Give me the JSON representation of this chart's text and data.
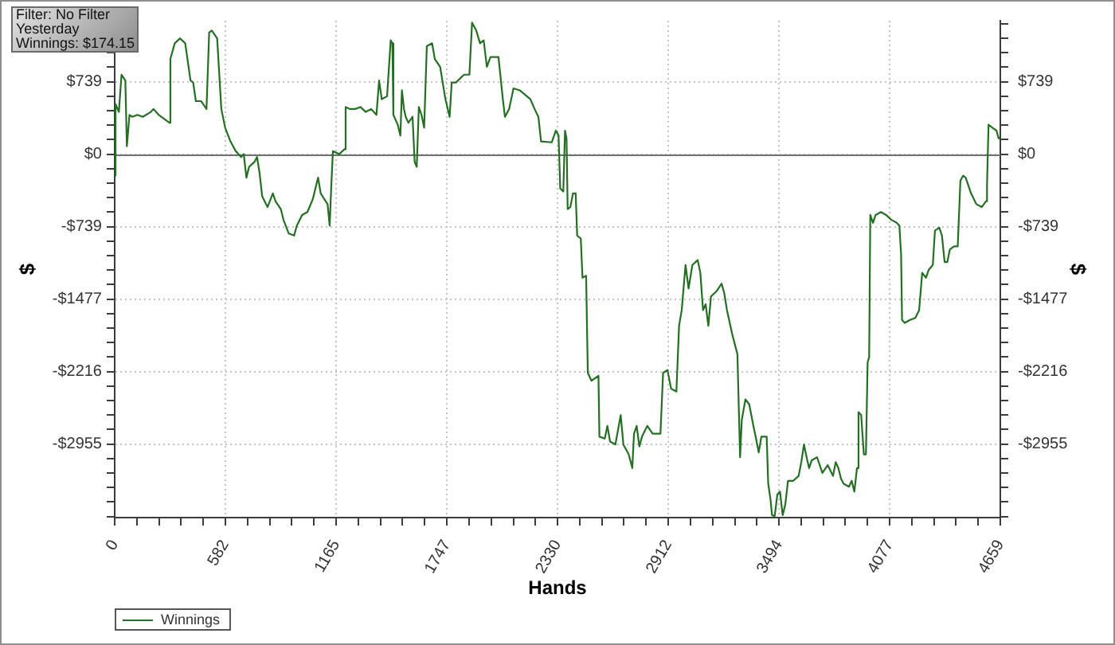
{
  "chart_data": {
    "type": "line",
    "xlabel": "Hands",
    "ylabel": "$",
    "y2label": "$",
    "annotations": [
      "Filter: No Filter",
      "Yesterday",
      "Winnings: $174.15"
    ],
    "x": [
      0,
      3,
      6,
      22,
      36,
      56,
      64,
      78,
      92,
      120,
      148,
      190,
      204,
      232,
      288,
      293,
      316,
      344,
      371,
      399,
      413,
      427,
      455,
      483,
      497,
      511,
      539,
      561,
      581,
      609,
      637,
      665,
      679,
      693,
      707,
      735,
      749,
      762,
      776,
      804,
      832,
      846,
      874,
      888,
      916,
      944,
      958,
      986,
      1014,
      1042,
      1070,
      1084,
      1103,
      1120,
      1131,
      1140,
      1148,
      1181,
      1209,
      1215,
      1237,
      1265,
      1293,
      1321,
      1349,
      1377,
      1391,
      1405,
      1433,
      1452,
      1461,
      1466,
      1489,
      1503,
      1511,
      1522,
      1531,
      1545,
      1567,
      1578,
      1589,
      1600,
      1614,
      1628,
      1642,
      1670,
      1684,
      1712,
      1740,
      1762,
      1773,
      1795,
      1838,
      1866,
      1880,
      1902,
      1922,
      1941,
      1958,
      1977,
      2019,
      2042,
      2053,
      2075,
      2098,
      2131,
      2187,
      2209,
      2229,
      2243,
      2299,
      2321,
      2335,
      2344,
      2360,
      2369,
      2377,
      2383,
      2397,
      2411,
      2425,
      2433,
      2452,
      2461,
      2480,
      2489,
      2508,
      2545,
      2550,
      2578,
      2592,
      2606,
      2634,
      2662,
      2676,
      2704,
      2723,
      2732,
      2746,
      2760,
      2774,
      2802,
      2830,
      2871,
      2885,
      2908,
      2927,
      2955,
      2969,
      2983,
      3003,
      3019,
      3039,
      3067,
      3081,
      3095,
      3109,
      3123,
      3137,
      3165,
      3193,
      3207,
      3221,
      3248,
      3276,
      3290,
      3299,
      3318,
      3338,
      3360,
      3374,
      3388,
      3402,
      3430,
      3438,
      3450,
      3458,
      3472,
      3486,
      3500,
      3514,
      3528,
      3542,
      3570,
      3598,
      3612,
      3626,
      3640,
      3653,
      3667,
      3695,
      3723,
      3751,
      3779,
      3793,
      3807,
      3821,
      3835,
      3863,
      3877,
      3891,
      3905,
      3913,
      3927,
      3941,
      3952,
      3961,
      3969,
      3975,
      3989,
      4003,
      4031,
      4058,
      4086,
      4114,
      4128,
      4137,
      4142,
      4156,
      4184,
      4212,
      4232,
      4248,
      4268,
      4282,
      4304,
      4315,
      4338,
      4352,
      4366,
      4380,
      4394,
      4416,
      4435,
      4449,
      4463,
      4477,
      4505,
      4533,
      4561,
      4584,
      4589,
      4597,
      4617,
      4639,
      4650,
      4659
    ],
    "series": [
      {
        "name": "Winnings",
        "color": "#246f24",
        "values": [
          0,
          -220,
          510,
          430,
          810,
          750,
          80,
          400,
          380,
          400,
          380,
          430,
          460,
          400,
          320,
          970,
          1130,
          1180,
          1130,
          750,
          730,
          540,
          540,
          460,
          1240,
          1260,
          1180,
          460,
          270,
          130,
          30,
          -30,
          0,
          -240,
          -130,
          -80,
          -30,
          -190,
          -430,
          -540,
          -400,
          -480,
          -560,
          -670,
          -810,
          -830,
          -730,
          -620,
          -590,
          -460,
          -240,
          -400,
          -460,
          -510,
          -730,
          -300,
          30,
          0,
          50,
          480,
          460,
          460,
          480,
          430,
          460,
          400,
          750,
          560,
          590,
          1160,
          1130,
          400,
          300,
          190,
          650,
          460,
          380,
          320,
          380,
          -80,
          -130,
          480,
          400,
          270,
          1100,
          1130,
          970,
          890,
          560,
          380,
          730,
          730,
          810,
          810,
          1340,
          1260,
          1130,
          1160,
          890,
          990,
          990,
          560,
          380,
          460,
          670,
          650,
          560,
          460,
          380,
          130,
          120,
          240,
          190,
          -350,
          -380,
          240,
          160,
          -560,
          -540,
          -400,
          -400,
          -830,
          -860,
          -1260,
          -1240,
          -2230,
          -2310,
          -2260,
          -2880,
          -2900,
          -2770,
          -2930,
          -2960,
          -2660,
          -2960,
          -3060,
          -3200,
          -2850,
          -2770,
          -2980,
          -2880,
          -2770,
          -2850,
          -2850,
          -2230,
          -2200,
          -2390,
          -2420,
          -1750,
          -1590,
          -1130,
          -1370,
          -1130,
          -1080,
          -1210,
          -1590,
          -1530,
          -1750,
          -1450,
          -1400,
          -1320,
          -1420,
          -1590,
          -1830,
          -2040,
          -3090,
          -2710,
          -2500,
          -2550,
          -2770,
          -2900,
          -3040,
          -2880,
          -2880,
          -3360,
          -3520,
          -3680,
          -3690,
          -3470,
          -3440,
          -3680,
          -3570,
          -3330,
          -3330,
          -3280,
          -3140,
          -2960,
          -3090,
          -3200,
          -3120,
          -3090,
          -3250,
          -3170,
          -3280,
          -3140,
          -3200,
          -3310,
          -3360,
          -3390,
          -3330,
          -3440,
          -3200,
          -2630,
          -2660,
          -3060,
          -3060,
          -2120,
          -2070,
          -620,
          -700,
          -620,
          -590,
          -620,
          -670,
          -700,
          -730,
          -1020,
          -1690,
          -1720,
          -1690,
          -1670,
          -1590,
          -1210,
          -1260,
          -1180,
          -1130,
          -780,
          -750,
          -830,
          -1100,
          -1100,
          -970,
          -940,
          -940,
          -270,
          -220,
          -240,
          -400,
          -510,
          -540,
          -480,
          -320,
          300,
          270,
          240,
          160,
          170
        ]
      }
    ],
    "xlim": [
      0,
      4659
    ],
    "xticks": [
      0,
      {
        "value": 116,
        "label": null
      },
      {
        "value": 233,
        "label": null
      },
      {
        "value": 349,
        "label": null
      },
      {
        "value": 466,
        "label": null
      },
      582,
      {
        "value": 699,
        "label": null
      },
      {
        "value": 815,
        "label": null
      },
      {
        "value": 932,
        "label": null
      },
      {
        "value": 1048,
        "label": null
      },
      1165,
      {
        "value": 1281,
        "label": null
      },
      {
        "value": 1398,
        "label": null
      },
      {
        "value": 1514,
        "label": null
      },
      {
        "value": 1631,
        "label": null
      },
      1747,
      {
        "value": 1864,
        "label": null
      },
      {
        "value": 1980,
        "label": null
      },
      {
        "value": 2097,
        "label": null
      },
      {
        "value": 2213,
        "label": null
      },
      2330,
      {
        "value": 2446,
        "label": null
      },
      {
        "value": 2563,
        "label": null
      },
      {
        "value": 2679,
        "label": null
      },
      {
        "value": 2796,
        "label": null
      },
      2912,
      {
        "value": 3029,
        "label": null
      },
      {
        "value": 3145,
        "label": null
      },
      {
        "value": 3262,
        "label": null
      },
      {
        "value": 3378,
        "label": null
      },
      3494,
      {
        "value": 3611,
        "label": null
      },
      {
        "value": 3727,
        "label": null
      },
      {
        "value": 3844,
        "label": null
      },
      {
        "value": 3960,
        "label": null
      },
      4077,
      {
        "value": 4193,
        "label": null
      },
      {
        "value": 4310,
        "label": null
      },
      {
        "value": 4426,
        "label": null
      },
      {
        "value": 4543,
        "label": null
      },
      4659
    ],
    "ylim": [
      -3705,
      1360
    ],
    "yticks": [
      {
        "value": -3693,
        "label": null
      },
      {
        "value": -3545,
        "label": null
      },
      {
        "value": -3398,
        "label": null
      },
      {
        "value": -3250,
        "label": null
      },
      {
        "value": -3102,
        "label": null
      },
      {
        "value": -2955,
        "label": "-$2955"
      },
      {
        "value": -2807,
        "label": null
      },
      {
        "value": -2659,
        "label": null
      },
      {
        "value": -2511,
        "label": null
      },
      {
        "value": -2364,
        "label": null
      },
      {
        "value": -2216,
        "label": "-$2216"
      },
      {
        "value": -2068,
        "label": null
      },
      {
        "value": -1920,
        "label": null
      },
      {
        "value": -1773,
        "label": null
      },
      {
        "value": -1625,
        "label": null
      },
      {
        "value": -1477,
        "label": "-$1477"
      },
      {
        "value": -1330,
        "label": null
      },
      {
        "value": -1182,
        "label": null
      },
      {
        "value": -1034,
        "label": null
      },
      {
        "value": -886,
        "label": null
      },
      {
        "value": -739,
        "label": "-$739"
      },
      {
        "value": -591,
        "label": null
      },
      {
        "value": -443,
        "label": null
      },
      {
        "value": -296,
        "label": null
      },
      {
        "value": -148,
        "label": null
      },
      {
        "value": 0,
        "label": "$0"
      },
      {
        "value": 148,
        "label": null
      },
      {
        "value": 296,
        "label": null
      },
      {
        "value": 443,
        "label": null
      },
      {
        "value": 591,
        "label": null
      },
      {
        "value": 739,
        "label": "$739"
      },
      {
        "value": 886,
        "label": null
      },
      {
        "value": 1034,
        "label": null
      },
      {
        "value": 1182,
        "label": null
      },
      {
        "value": 1330,
        "label": null
      }
    ],
    "y2lim": [
      -3705,
      1360
    ],
    "y2ticks": [
      {
        "value": -3693,
        "label": null
      },
      {
        "value": -3545,
        "label": null
      },
      {
        "value": -3398,
        "label": null
      },
      {
        "value": -3250,
        "label": null
      },
      {
        "value": -3102,
        "label": null
      },
      {
        "value": -2955,
        "label": "-$2955"
      },
      {
        "value": -2807,
        "label": null
      },
      {
        "value": -2659,
        "label": null
      },
      {
        "value": -2511,
        "label": null
      },
      {
        "value": -2364,
        "label": null
      },
      {
        "value": -2216,
        "label": "-$2216"
      },
      {
        "value": -2068,
        "label": null
      },
      {
        "value": -1920,
        "label": null
      },
      {
        "value": -1773,
        "label": null
      },
      {
        "value": -1625,
        "label": null
      },
      {
        "value": -1477,
        "label": "-$1477"
      },
      {
        "value": -1330,
        "label": null
      },
      {
        "value": -1182,
        "label": null
      },
      {
        "value": -1034,
        "label": null
      },
      {
        "value": -886,
        "label": null
      },
      {
        "value": -739,
        "label": "-$739"
      },
      {
        "value": -591,
        "label": null
      },
      {
        "value": -443,
        "label": null
      },
      {
        "value": -296,
        "label": null
      },
      {
        "value": -148,
        "label": null
      },
      {
        "value": 0,
        "label": "$0"
      },
      {
        "value": 148,
        "label": null
      },
      {
        "value": 296,
        "label": null
      },
      {
        "value": 443,
        "label": null
      },
      {
        "value": 591,
        "label": null
      },
      {
        "value": 739,
        "label": "$739"
      },
      {
        "value": 886,
        "label": null
      },
      {
        "value": 1034,
        "label": null
      },
      {
        "value": 1182,
        "label": null
      },
      {
        "value": 1330,
        "label": null
      }
    ],
    "grid": true,
    "legend": "bottom left",
    "marker": "none",
    "ref_lines": [
      {
        "axis": "y",
        "value": 0,
        "color": "#707070"
      }
    ]
  }
}
